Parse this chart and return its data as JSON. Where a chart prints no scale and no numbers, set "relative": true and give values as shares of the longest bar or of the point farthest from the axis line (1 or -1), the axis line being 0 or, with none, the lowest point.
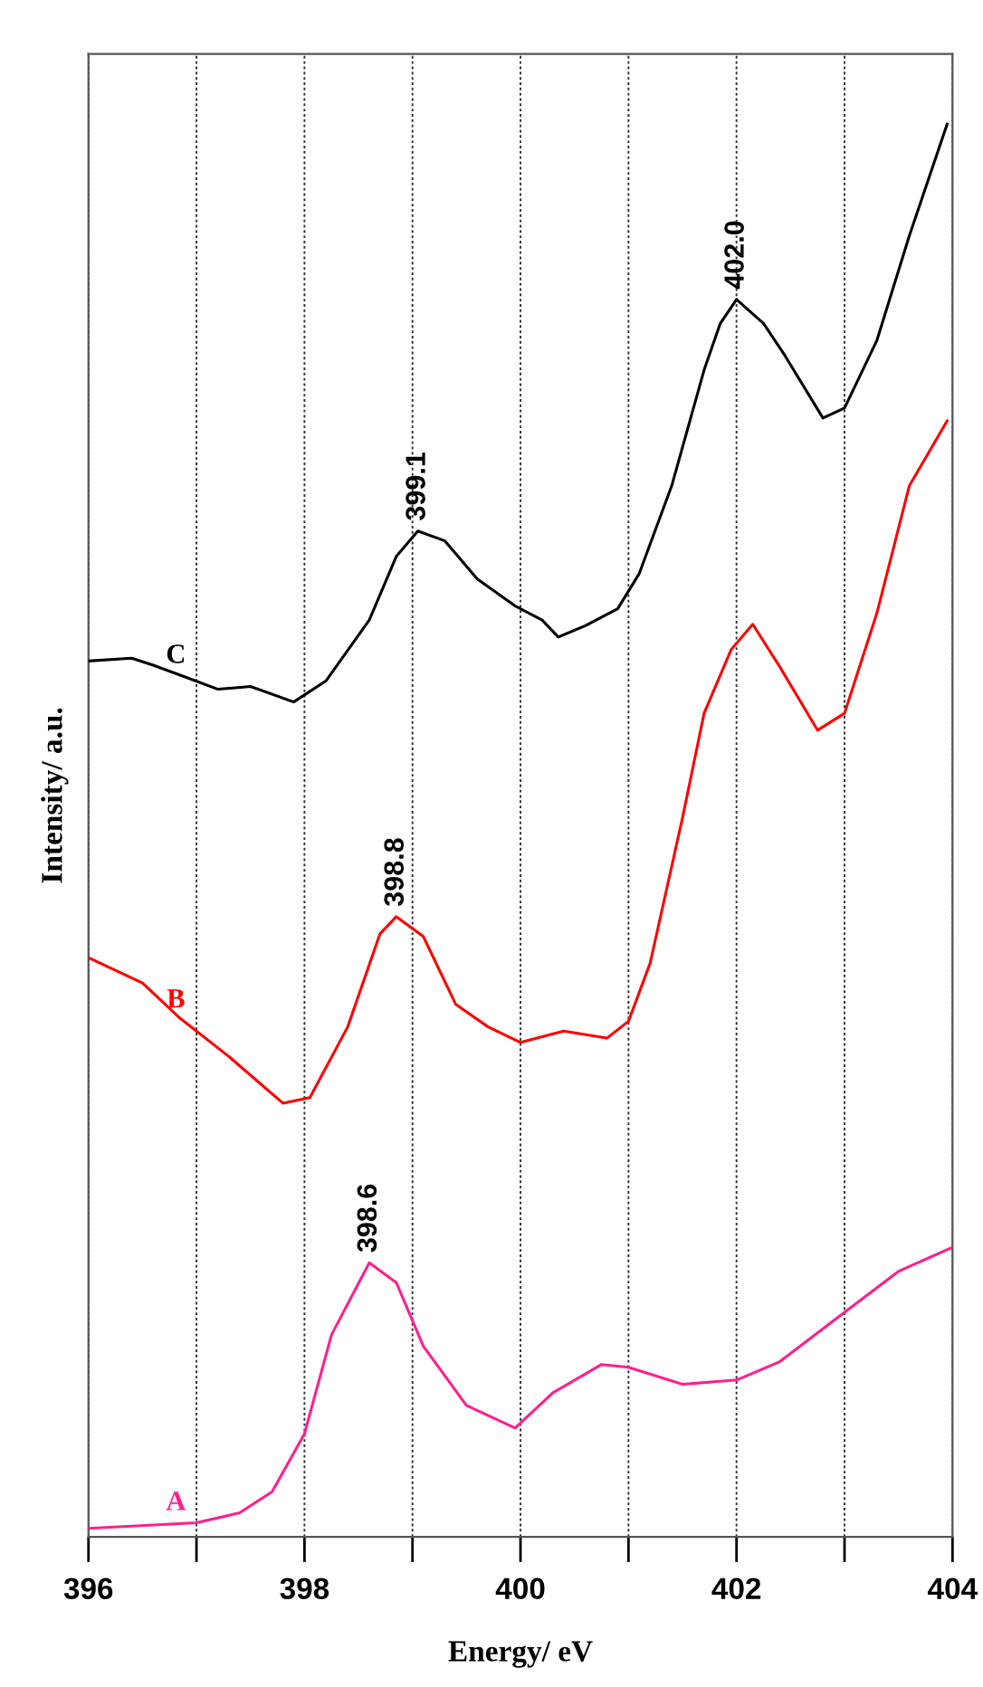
{
  "chart_data": {
    "type": "line",
    "relative": true,
    "xlabel": "Energy/ eV",
    "ylabel": "Intensity/ a.u.",
    "xlim": [
      396,
      404
    ],
    "xticks": [
      396,
      {
        "value": 397,
        "label": null
      },
      398,
      {
        "value": 399,
        "label": null
      },
      400,
      {
        "value": 401,
        "label": null
      },
      402,
      {
        "value": 403,
        "label": null
      },
      404
    ],
    "grid": "x",
    "line_style": "solid",
    "marker": "none",
    "series": [
      {
        "name": "A",
        "color": "#ff1f8e",
        "x": [
          396.0,
          397.0,
          397.4,
          397.7,
          398.0,
          398.25,
          398.6,
          398.85,
          399.1,
          399.5,
          399.95,
          400.3,
          400.75,
          401.0,
          401.5,
          402.0,
          402.4,
          403.0,
          403.5,
          404.0
        ],
        "values": [
          0.006,
          0.01,
          0.017,
          0.032,
          0.073,
          0.143,
          0.194,
          0.18,
          0.135,
          0.093,
          0.077,
          0.102,
          0.122,
          0.12,
          0.108,
          0.111,
          0.124,
          0.159,
          0.188,
          0.205
        ]
      },
      {
        "name": "B",
        "color": "#ff0000",
        "x": [
          396.0,
          396.5,
          396.85,
          397.3,
          397.8,
          398.05,
          398.4,
          398.7,
          398.85,
          399.1,
          399.4,
          399.7,
          400.0,
          400.4,
          400.8,
          401.0,
          401.2,
          401.5,
          401.7,
          401.95,
          402.15,
          402.4,
          402.75,
          403.0,
          403.3,
          403.6,
          403.95
        ],
        "values": [
          0.41,
          0.392,
          0.367,
          0.34,
          0.307,
          0.311,
          0.361,
          0.427,
          0.439,
          0.425,
          0.377,
          0.361,
          0.35,
          0.358,
          0.353,
          0.365,
          0.406,
          0.509,
          0.583,
          0.628,
          0.646,
          0.616,
          0.571,
          0.583,
          0.654,
          0.744,
          0.79
        ]
      },
      {
        "name": "C",
        "color": "#000000",
        "x": [
          396.0,
          396.4,
          396.6,
          396.85,
          397.2,
          397.5,
          397.9,
          398.2,
          398.6,
          398.85,
          399.05,
          399.3,
          399.6,
          399.95,
          400.2,
          400.35,
          400.6,
          400.9,
          401.1,
          401.4,
          401.7,
          401.85,
          402.0,
          402.25,
          402.45,
          402.8,
          403.0,
          403.3,
          403.6,
          403.95
        ],
        "values": [
          0.62,
          0.622,
          0.617,
          0.61,
          0.6,
          0.602,
          0.591,
          0.606,
          0.649,
          0.694,
          0.712,
          0.705,
          0.678,
          0.659,
          0.649,
          0.637,
          0.645,
          0.657,
          0.682,
          0.744,
          0.826,
          0.859,
          0.876,
          0.859,
          0.836,
          0.792,
          0.799,
          0.847,
          0.921,
          1.0
        ]
      }
    ],
    "annotations": [
      {
        "text": "398.6",
        "x": 398.6,
        "y": 0.194
      },
      {
        "text": "398.8",
        "x": 398.85,
        "y": 0.439
      },
      {
        "text": "399.1",
        "x": 399.05,
        "y": 0.712
      },
      {
        "text": "402.0",
        "x": 402.0,
        "y": 0.876
      }
    ]
  }
}
